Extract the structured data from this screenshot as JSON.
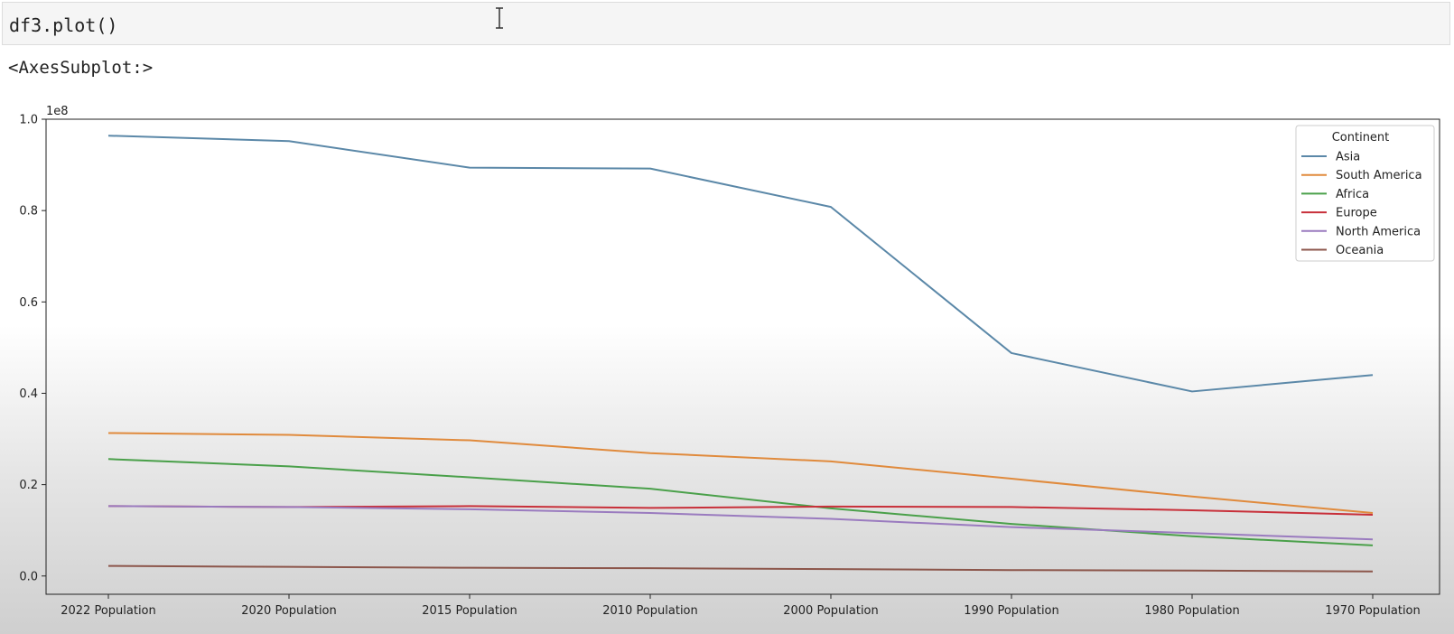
{
  "cell": {
    "input_code": "df3.plot()",
    "output_repr": "<AxesSubplot:>"
  },
  "chart_data": {
    "type": "line",
    "categories": [
      "2022 Population",
      "2020 Population",
      "2015 Population",
      "2010 Population",
      "2000 Population",
      "1990 Population",
      "1980 Population",
      "1970 Population"
    ],
    "y_offset_label": "1e8",
    "ylim": [
      -0.04,
      1.0
    ],
    "yticks": [
      0.0,
      0.2,
      0.4,
      0.6,
      0.8,
      1.0
    ],
    "ytick_labels": [
      "0.0",
      "0.2",
      "0.4",
      "0.6",
      "0.8",
      "1.0"
    ],
    "grid": false,
    "legend_title": "Continent",
    "legend_position": "top-right",
    "series": [
      {
        "name": "Asia",
        "color": "#5b88a8",
        "values": [
          0.964,
          0.952,
          0.894,
          0.892,
          0.808,
          0.488,
          0.404,
          0.44
        ]
      },
      {
        "name": "South America",
        "color": "#e08a3c",
        "values": [
          0.313,
          0.309,
          0.297,
          0.269,
          0.251,
          0.213,
          0.174,
          0.138
        ]
      },
      {
        "name": "Africa",
        "color": "#4aa04a",
        "values": [
          0.256,
          0.24,
          0.216,
          0.191,
          0.148,
          0.114,
          0.087,
          0.067
        ]
      },
      {
        "name": "Europe",
        "color": "#c8303a",
        "values": [
          0.153,
          0.151,
          0.153,
          0.149,
          0.152,
          0.151,
          0.144,
          0.134
        ]
      },
      {
        "name": "North America",
        "color": "#9a7bbf",
        "values": [
          0.153,
          0.151,
          0.146,
          0.138,
          0.125,
          0.107,
          0.094,
          0.08
        ]
      },
      {
        "name": "Oceania",
        "color": "#8c564b",
        "values": [
          0.022,
          0.02,
          0.018,
          0.017,
          0.015,
          0.013,
          0.012,
          0.01
        ]
      }
    ]
  }
}
